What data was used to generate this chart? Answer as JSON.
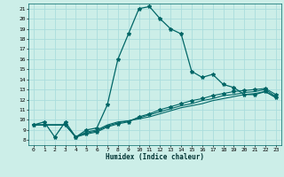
{
  "xlabel": "Humidex (Indice chaleur)",
  "line_color": "#006666",
  "bg_color": "#cceee8",
  "grid_color": "#aadddd",
  "xlim": [
    -0.5,
    23.5
  ],
  "ylim": [
    7.5,
    21.5
  ],
  "xticks": [
    0,
    1,
    2,
    3,
    4,
    5,
    6,
    7,
    8,
    9,
    10,
    11,
    12,
    13,
    14,
    15,
    16,
    17,
    18,
    19,
    20,
    21,
    22,
    23
  ],
  "yticks": [
    8,
    9,
    10,
    11,
    12,
    13,
    14,
    15,
    16,
    17,
    18,
    19,
    20,
    21
  ],
  "lines": [
    {
      "x": [
        0,
        1,
        2,
        3,
        4,
        5,
        6,
        7,
        8,
        9,
        10,
        11,
        12,
        13,
        14,
        15,
        16,
        17,
        18,
        19,
        20,
        21,
        22,
        23
      ],
      "y": [
        9.5,
        9.8,
        8.3,
        9.8,
        8.3,
        9.0,
        9.2,
        11.5,
        16.0,
        18.5,
        21.0,
        21.2,
        20.0,
        19.0,
        18.5,
        14.8,
        14.2,
        14.5,
        13.5,
        13.2,
        12.5,
        12.5,
        12.8,
        12.2
      ],
      "marker": "*",
      "linewidth": 0.9,
      "linestyle": "-"
    },
    {
      "x": [
        0,
        1,
        3,
        4,
        5,
        6,
        7,
        8,
        9,
        10,
        11,
        12,
        13,
        14,
        15,
        16,
        17,
        18,
        19,
        20,
        21,
        22,
        23
      ],
      "y": [
        9.5,
        9.5,
        9.5,
        8.3,
        8.8,
        9.0,
        9.5,
        9.8,
        9.9,
        10.1,
        10.3,
        10.6,
        10.9,
        11.2,
        11.4,
        11.6,
        11.9,
        12.1,
        12.3,
        12.5,
        12.6,
        12.8,
        12.2
      ],
      "marker": null,
      "linewidth": 0.8,
      "linestyle": "-"
    },
    {
      "x": [
        0,
        1,
        3,
        4,
        5,
        6,
        7,
        8,
        9,
        10,
        11,
        12,
        13,
        14,
        15,
        16,
        17,
        18,
        19,
        20,
        21,
        22,
        23
      ],
      "y": [
        9.5,
        9.5,
        9.5,
        8.3,
        8.7,
        8.9,
        9.4,
        9.7,
        9.9,
        10.2,
        10.5,
        10.8,
        11.1,
        11.4,
        11.6,
        11.9,
        12.1,
        12.4,
        12.5,
        12.7,
        12.8,
        13.0,
        12.3
      ],
      "marker": null,
      "linewidth": 0.8,
      "linestyle": "-"
    },
    {
      "x": [
        0,
        1,
        3,
        4,
        5,
        6,
        7,
        8,
        9,
        10,
        11,
        12,
        13,
        14,
        15,
        16,
        17,
        18,
        19,
        20,
        21,
        22,
        23
      ],
      "y": [
        9.5,
        9.5,
        9.5,
        8.3,
        8.6,
        8.8,
        9.3,
        9.6,
        9.8,
        10.3,
        10.6,
        11.0,
        11.3,
        11.6,
        11.9,
        12.1,
        12.4,
        12.6,
        12.8,
        12.9,
        13.0,
        13.1,
        12.5
      ],
      "marker": "*",
      "linewidth": 0.8,
      "linestyle": "-"
    }
  ]
}
